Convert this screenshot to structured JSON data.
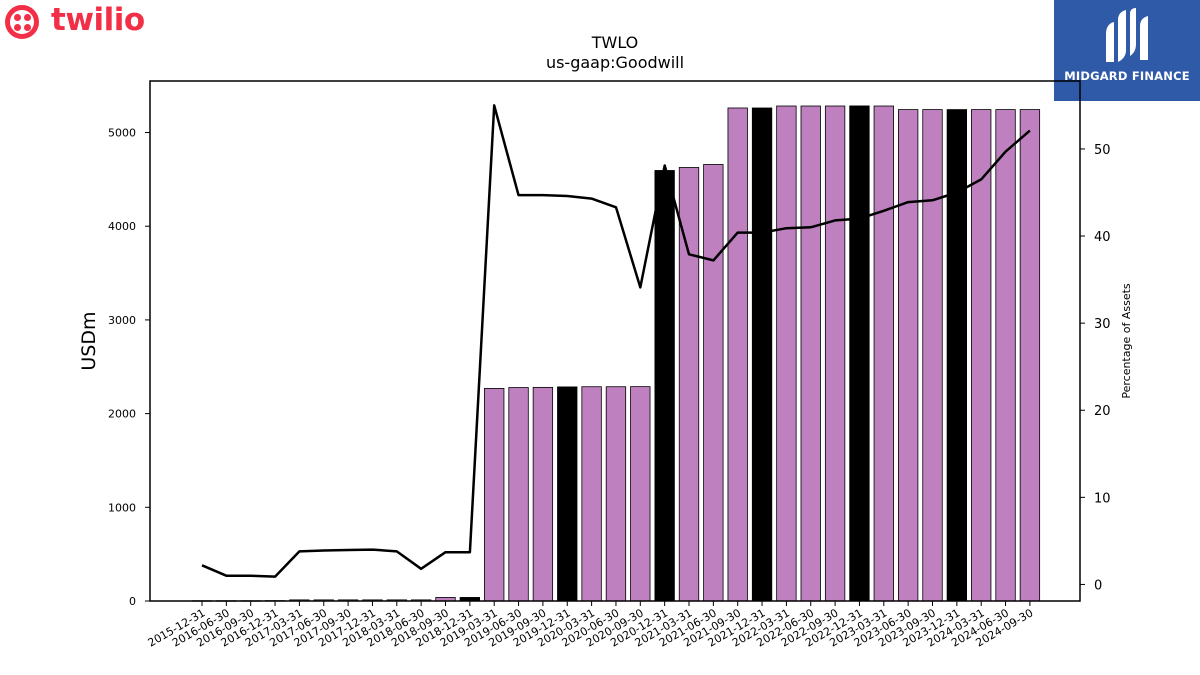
{
  "logos": {
    "left": {
      "text": "twilio",
      "color": "#f22f46"
    },
    "right": {
      "text": "MIDGARD FINANCE",
      "bg": "#2f5aa8"
    }
  },
  "chart_data": {
    "type": "bar",
    "title": "TWLO",
    "subtitle": "us-gaap:Goodwill",
    "ylabel": "USDm",
    "y2label": "Percentage of Assets",
    "ylim": [
      0,
      5550
    ],
    "y2lim": [
      -1.9,
      57.8
    ],
    "yticks": [
      0,
      1000,
      2000,
      3000,
      4000,
      5000
    ],
    "y2ticks": [
      0,
      10,
      20,
      30,
      40,
      50
    ],
    "categories": [
      "2015-12-31",
      "2016-06-30",
      "2016-09-30",
      "2016-12-31",
      "2017-03-31",
      "2017-06-30",
      "2017-09-30",
      "2017-12-31",
      "2018-03-31",
      "2018-06-30",
      "2018-09-30",
      "2018-12-31",
      "2019-03-31",
      "2019-06-30",
      "2019-09-30",
      "2019-12-31",
      "2020-03-31",
      "2020-06-30",
      "2020-09-30",
      "2020-12-31",
      "2021-03-31",
      "2021-06-30",
      "2021-09-30",
      "2021-12-31",
      "2022-03-31",
      "2022-06-30",
      "2022-09-30",
      "2022-12-31",
      "2023-03-31",
      "2023-06-30",
      "2023-09-30",
      "2023-12-31",
      "2024-03-31",
      "2024-06-30",
      "2024-09-30"
    ],
    "series": [
      {
        "kind": "bar",
        "values": [
          3,
          3,
          3,
          4,
          12,
          12,
          12,
          12,
          12,
          12,
          38,
          38,
          2269,
          2278,
          2280,
          2285,
          2287,
          2287,
          2288,
          4595,
          4627,
          4659,
          5262,
          5262,
          5283,
          5283,
          5283,
          5284,
          5283,
          5245,
          5245,
          5245,
          5245,
          5245,
          5245
        ],
        "highlight": [
          false,
          false,
          false,
          false,
          false,
          false,
          false,
          false,
          false,
          false,
          false,
          true,
          false,
          false,
          false,
          true,
          false,
          false,
          false,
          true,
          false,
          false,
          false,
          true,
          false,
          false,
          false,
          true,
          false,
          false,
          false,
          true,
          false,
          false,
          false
        ]
      },
      {
        "kind": "line",
        "values": [
          2.2,
          1.0,
          1.0,
          0.9,
          3.8,
          3.9,
          3.95,
          4.0,
          3.8,
          1.8,
          3.7,
          3.7,
          55.0,
          44.7,
          44.7,
          44.6,
          44.3,
          43.3,
          34.1,
          48.1,
          37.9,
          37.2,
          40.4,
          40.4,
          40.9,
          41.0,
          41.8,
          42.0,
          42.9,
          43.9,
          44.1,
          45.0,
          46.5,
          49.7,
          52.1
        ]
      }
    ],
    "colors": {
      "bar": "#bf80bf",
      "highlight": "#000000",
      "line": "#000000"
    }
  }
}
